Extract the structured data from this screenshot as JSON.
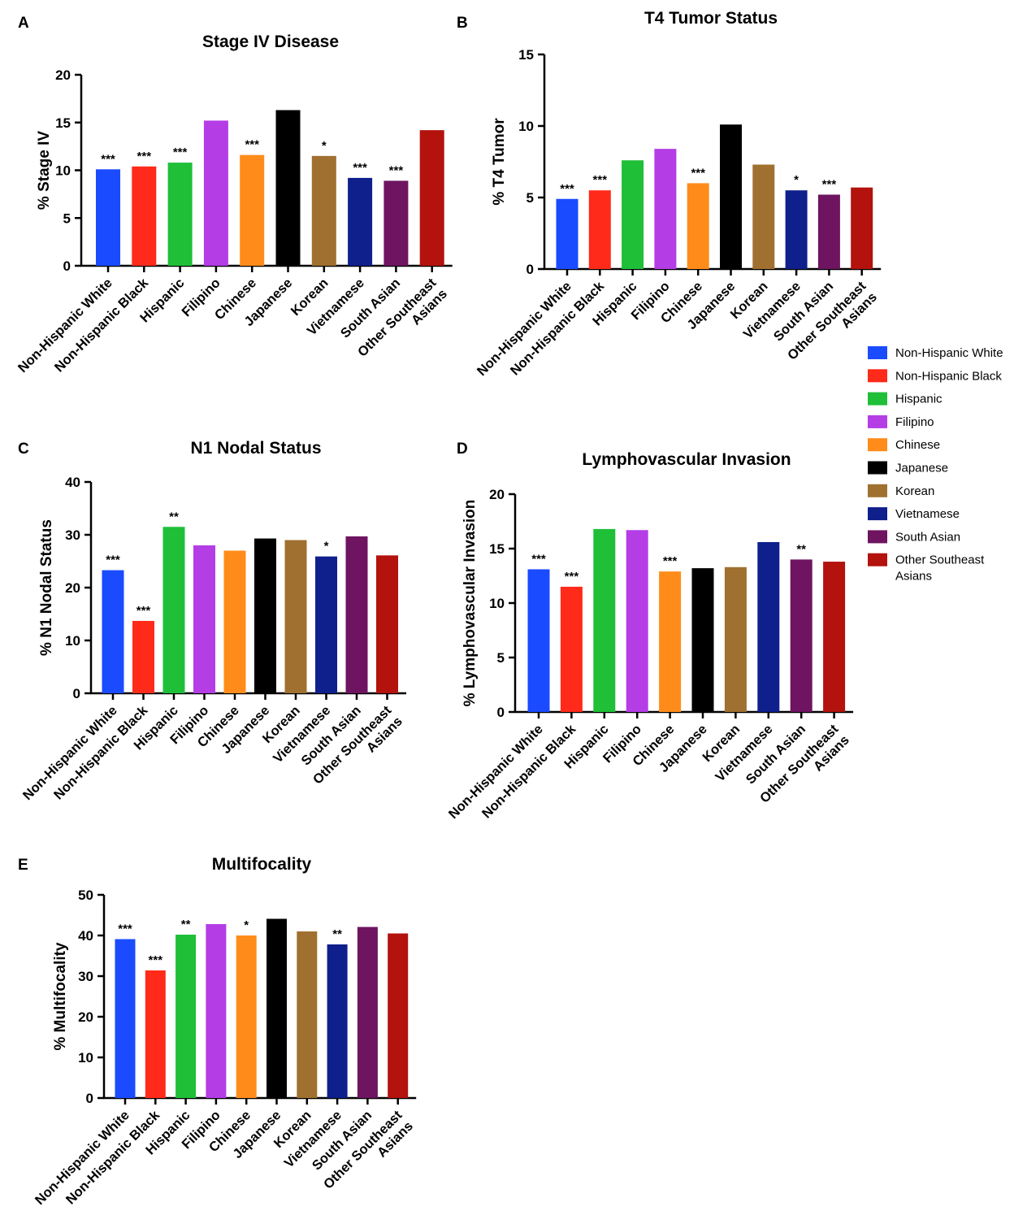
{
  "chart_data": [
    {
      "panel": "A",
      "type": "bar",
      "title": "Stage IV Disease",
      "ylabel": "% Stage IV",
      "xlabel": "",
      "ylim": [
        0,
        20
      ],
      "yticks": [
        0,
        5,
        10,
        15,
        20
      ],
      "categories": [
        "Non-Hispanic White",
        "Non-Hispanic Black",
        "Hispanic",
        "Filipino",
        "Chinese",
        "Japanese",
        "Korean",
        "Vietnamese",
        "South Asian",
        "Other Southeast Asians"
      ],
      "values": [
        10.1,
        10.4,
        10.8,
        15.2,
        11.6,
        16.3,
        11.5,
        9.2,
        8.9,
        14.2
      ],
      "significance": [
        "***",
        "***",
        "***",
        "",
        "***",
        "",
        "*",
        "***",
        "***",
        ""
      ]
    },
    {
      "panel": "B",
      "type": "bar",
      "title": "T4 Tumor Status",
      "ylabel": "% T4 Tumor",
      "xlabel": "",
      "ylim": [
        0,
        15
      ],
      "yticks": [
        0,
        5,
        10,
        15
      ],
      "categories": [
        "Non-Hispanic White",
        "Non-Hispanic Black",
        "Hispanic",
        "Filipino",
        "Chinese",
        "Japanese",
        "Korean",
        "Vietnamese",
        "South Asian",
        "Other Southeast Asians"
      ],
      "values": [
        4.9,
        5.5,
        7.6,
        8.4,
        6.0,
        10.1,
        7.3,
        5.5,
        5.2,
        5.7
      ],
      "significance": [
        "***",
        "***",
        "",
        "",
        "***",
        "",
        "",
        "*",
        "***",
        ""
      ]
    },
    {
      "panel": "C",
      "type": "bar",
      "title": "N1 Nodal Status",
      "ylabel": "% N1 Nodal Status",
      "xlabel": "",
      "ylim": [
        0,
        40
      ],
      "yticks": [
        0,
        10,
        20,
        30,
        40
      ],
      "categories": [
        "Non-Hispanic White",
        "Non-Hispanic Black",
        "Hispanic",
        "Filipino",
        "Chinese",
        "Japanese",
        "Korean",
        "Vietnamese",
        "South Asian",
        "Other Southeast Asians"
      ],
      "values": [
        23.3,
        13.7,
        31.5,
        28.0,
        27.0,
        29.3,
        29.0,
        25.9,
        29.7,
        26.1
      ],
      "significance": [
        "***",
        "***",
        "**",
        "",
        "",
        "",
        "",
        "*",
        "",
        ""
      ]
    },
    {
      "panel": "D",
      "type": "bar",
      "title": "Lymphovascular Invasion",
      "ylabel": "% Lymphovascular Invasion",
      "xlabel": "",
      "ylim": [
        0,
        20
      ],
      "yticks": [
        0,
        5,
        10,
        15,
        20
      ],
      "categories": [
        "Non-Hispanic White",
        "Non-Hispanic Black",
        "Hispanic",
        "Filipino",
        "Chinese",
        "Japanese",
        "Korean",
        "Vietnamese",
        "South Asian",
        "Other Southeast Asians"
      ],
      "values": [
        13.1,
        11.5,
        16.8,
        16.7,
        12.9,
        13.2,
        13.3,
        15.6,
        14.0,
        13.8
      ],
      "significance": [
        "***",
        "***",
        "",
        "",
        "***",
        "",
        "",
        "",
        "**",
        ""
      ]
    },
    {
      "panel": "E",
      "type": "bar",
      "title": "Multifocality",
      "ylabel": "% Multifocality",
      "xlabel": "",
      "ylim": [
        0,
        50
      ],
      "yticks": [
        0,
        10,
        20,
        30,
        40,
        50
      ],
      "categories": [
        "Non-Hispanic White",
        "Non-Hispanic Black",
        "Hispanic",
        "Filipino",
        "Chinese",
        "Japanese",
        "Korean",
        "Vietnamese",
        "South Asian",
        "Other Southeast Asians"
      ],
      "values": [
        39.1,
        31.4,
        40.2,
        42.8,
        40.0,
        44.1,
        41.0,
        37.8,
        42.1,
        40.5
      ],
      "significance": [
        "***",
        "***",
        "**",
        "",
        "*",
        "",
        "",
        "**",
        "",
        ""
      ]
    }
  ],
  "legend": {
    "entries": [
      {
        "label": "Non-Hispanic White",
        "color": "#1a4bff"
      },
      {
        "label": "Non-Hispanic Black",
        "color": "#ff2a1a"
      },
      {
        "label": "Hispanic",
        "color": "#1fbf38"
      },
      {
        "label": "Filipino",
        "color": "#b43de6"
      },
      {
        "label": "Chinese",
        "color": "#ff8c1a"
      },
      {
        "label": "Japanese",
        "color": "#000000"
      },
      {
        "label": "Korean",
        "color": "#a07030"
      },
      {
        "label": "Vietnamese",
        "color": "#0f1f8c"
      },
      {
        "label": "South Asian",
        "color": "#6e1460"
      },
      {
        "label": "Other Southeast Asians",
        "color": "#b3120d"
      }
    ]
  }
}
